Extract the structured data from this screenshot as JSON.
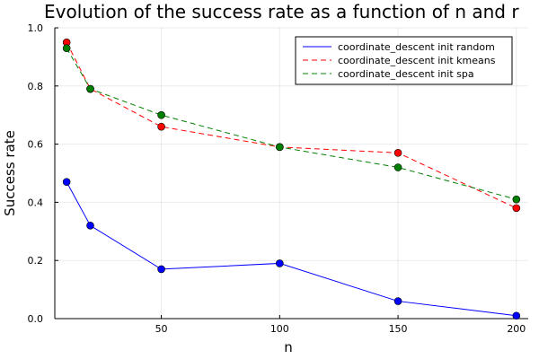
{
  "chart_data": {
    "type": "line",
    "title": "Evolution of the success rate as a function of n and r",
    "xlabel": "n",
    "ylabel": "Success rate",
    "xlim": [
      5,
      205
    ],
    "ylim": [
      0,
      1
    ],
    "xticks": [
      50,
      100,
      150,
      200
    ],
    "yticks": [
      0.0,
      0.2,
      0.4,
      0.6,
      0.8,
      1.0
    ],
    "ytick_labels": [
      "0.0",
      "0.2",
      "0.4",
      "0.6",
      "0.8",
      "1.0"
    ],
    "grid": true,
    "legend_position": "top-right",
    "x": [
      10,
      20,
      50,
      100,
      150,
      200
    ],
    "series": [
      {
        "name": "coordinate_descent init random",
        "values": [
          0.47,
          0.32,
          0.17,
          0.19,
          0.06,
          0.01
        ],
        "color": "#0000ff",
        "dashed": false
      },
      {
        "name": "coordinate_descent init kmeans",
        "values": [
          0.95,
          0.79,
          0.66,
          0.59,
          0.57,
          0.38
        ],
        "color": "#ff0000",
        "dashed": true
      },
      {
        "name": "coordinate_descent init spa",
        "values": [
          0.93,
          0.79,
          0.7,
          0.59,
          0.52,
          0.41
        ],
        "color": "#008000",
        "dashed": true
      }
    ]
  }
}
